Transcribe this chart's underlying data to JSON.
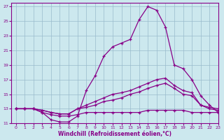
{
  "xlabel": "Windchill (Refroidissement éolien,°C)",
  "bg_color": "#cce8ee",
  "line_color": "#880088",
  "grid_color": "#99bbcc",
  "xlim": [
    -0.5,
    23
  ],
  "ylim": [
    11,
    27.5
  ],
  "xticks": [
    0,
    1,
    2,
    3,
    4,
    5,
    6,
    7,
    8,
    9,
    10,
    11,
    12,
    13,
    14,
    15,
    16,
    17,
    18,
    19,
    20,
    21,
    22,
    23
  ],
  "yticks": [
    11,
    13,
    15,
    17,
    19,
    21,
    23,
    25,
    27
  ],
  "lines": [
    {
      "x": [
        0,
        1,
        2,
        3,
        4,
        5,
        6,
        7,
        8,
        9,
        10,
        11,
        12,
        13,
        14,
        15,
        16,
        17,
        18,
        19,
        20,
        21,
        22,
        23
      ],
      "y": [
        13,
        13,
        13,
        12.5,
        11.5,
        11.2,
        11.2,
        12.0,
        15.5,
        17.5,
        20.2,
        21.5,
        22.0,
        22.5,
        25.2,
        27.0,
        26.5,
        24.2,
        19.0,
        18.5,
        17.0,
        14.8,
        13.5,
        12.5
      ]
    },
    {
      "x": [
        0,
        1,
        2,
        3,
        4,
        5,
        6,
        7,
        8,
        9,
        10,
        11,
        12,
        13,
        14,
        15,
        16,
        17,
        18,
        19,
        20,
        21,
        22,
        23
      ],
      "y": [
        13,
        13,
        13,
        12.8,
        12.5,
        12.3,
        12.3,
        13.0,
        13.5,
        14.0,
        14.5,
        15.0,
        15.2,
        15.5,
        16.0,
        16.5,
        17.0,
        17.2,
        16.2,
        15.5,
        15.2,
        13.5,
        13.2,
        13.0
      ]
    },
    {
      "x": [
        0,
        1,
        2,
        3,
        4,
        5,
        6,
        7,
        8,
        9,
        10,
        11,
        12,
        13,
        14,
        15,
        16,
        17,
        18,
        19,
        20,
        21,
        22,
        23
      ],
      "y": [
        13,
        13,
        13,
        12.8,
        12.5,
        12.3,
        12.3,
        13.0,
        13.2,
        13.5,
        14.0,
        14.2,
        14.5,
        15.0,
        15.3,
        15.8,
        16.2,
        16.5,
        15.8,
        15.0,
        14.8,
        13.5,
        13.0,
        12.8
      ]
    },
    {
      "x": [
        0,
        1,
        2,
        3,
        4,
        5,
        6,
        7,
        8,
        9,
        10,
        11,
        12,
        13,
        14,
        15,
        16,
        17,
        18,
        19,
        20,
        21,
        22,
        23
      ],
      "y": [
        13,
        13,
        13,
        12.5,
        12.2,
        12.0,
        12.0,
        12.2,
        12.5,
        12.5,
        12.5,
        12.5,
        12.5,
        12.5,
        12.5,
        12.8,
        12.8,
        12.8,
        12.8,
        12.8,
        12.5,
        12.5,
        12.5,
        12.5
      ]
    }
  ]
}
